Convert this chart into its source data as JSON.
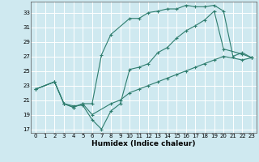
{
  "xlabel": "Humidex (Indice chaleur)",
  "bg_color": "#cfe9f0",
  "grid_color": "#ffffff",
  "line_color": "#2e7d6e",
  "xlim": [
    -0.5,
    23.5
  ],
  "ylim": [
    16.5,
    34.5
  ],
  "xticks": [
    0,
    1,
    2,
    3,
    4,
    5,
    6,
    7,
    8,
    9,
    10,
    11,
    12,
    13,
    14,
    15,
    16,
    17,
    18,
    19,
    20,
    21,
    22,
    23
  ],
  "yticks": [
    17,
    19,
    21,
    23,
    25,
    27,
    29,
    31,
    33
  ],
  "line1_x": [
    0,
    2,
    3,
    4,
    5,
    6,
    7,
    8,
    10,
    11,
    12,
    13,
    14,
    15,
    16,
    17,
    18,
    19,
    20,
    21,
    22,
    23
  ],
  "line1_y": [
    22.5,
    23.5,
    20.5,
    20.0,
    20.5,
    20.5,
    27.2,
    30.0,
    32.2,
    32.2,
    33.0,
    33.2,
    33.5,
    33.5,
    34.0,
    33.8,
    33.8,
    34.0,
    33.2,
    27.0,
    27.5,
    26.8
  ],
  "line2_x": [
    0,
    2,
    3,
    4,
    5,
    6,
    7,
    8,
    9,
    10,
    11,
    12,
    13,
    14,
    15,
    16,
    17,
    18,
    19,
    20,
    22,
    23
  ],
  "line2_y": [
    22.5,
    23.5,
    20.5,
    20.2,
    20.3,
    18.3,
    17.0,
    19.5,
    20.5,
    25.2,
    25.5,
    26.0,
    27.5,
    28.2,
    29.5,
    30.5,
    31.2,
    32.0,
    33.2,
    28.0,
    27.3,
    26.8
  ],
  "line3_x": [
    0,
    2,
    3,
    4,
    5,
    6,
    8,
    9,
    10,
    11,
    12,
    13,
    14,
    15,
    16,
    17,
    18,
    19,
    20,
    22,
    23
  ],
  "line3_y": [
    22.5,
    23.5,
    20.5,
    20.0,
    20.5,
    19.0,
    20.5,
    21.0,
    22.0,
    22.5,
    23.0,
    23.5,
    24.0,
    24.5,
    25.0,
    25.5,
    26.0,
    26.5,
    27.0,
    26.5,
    26.8
  ]
}
